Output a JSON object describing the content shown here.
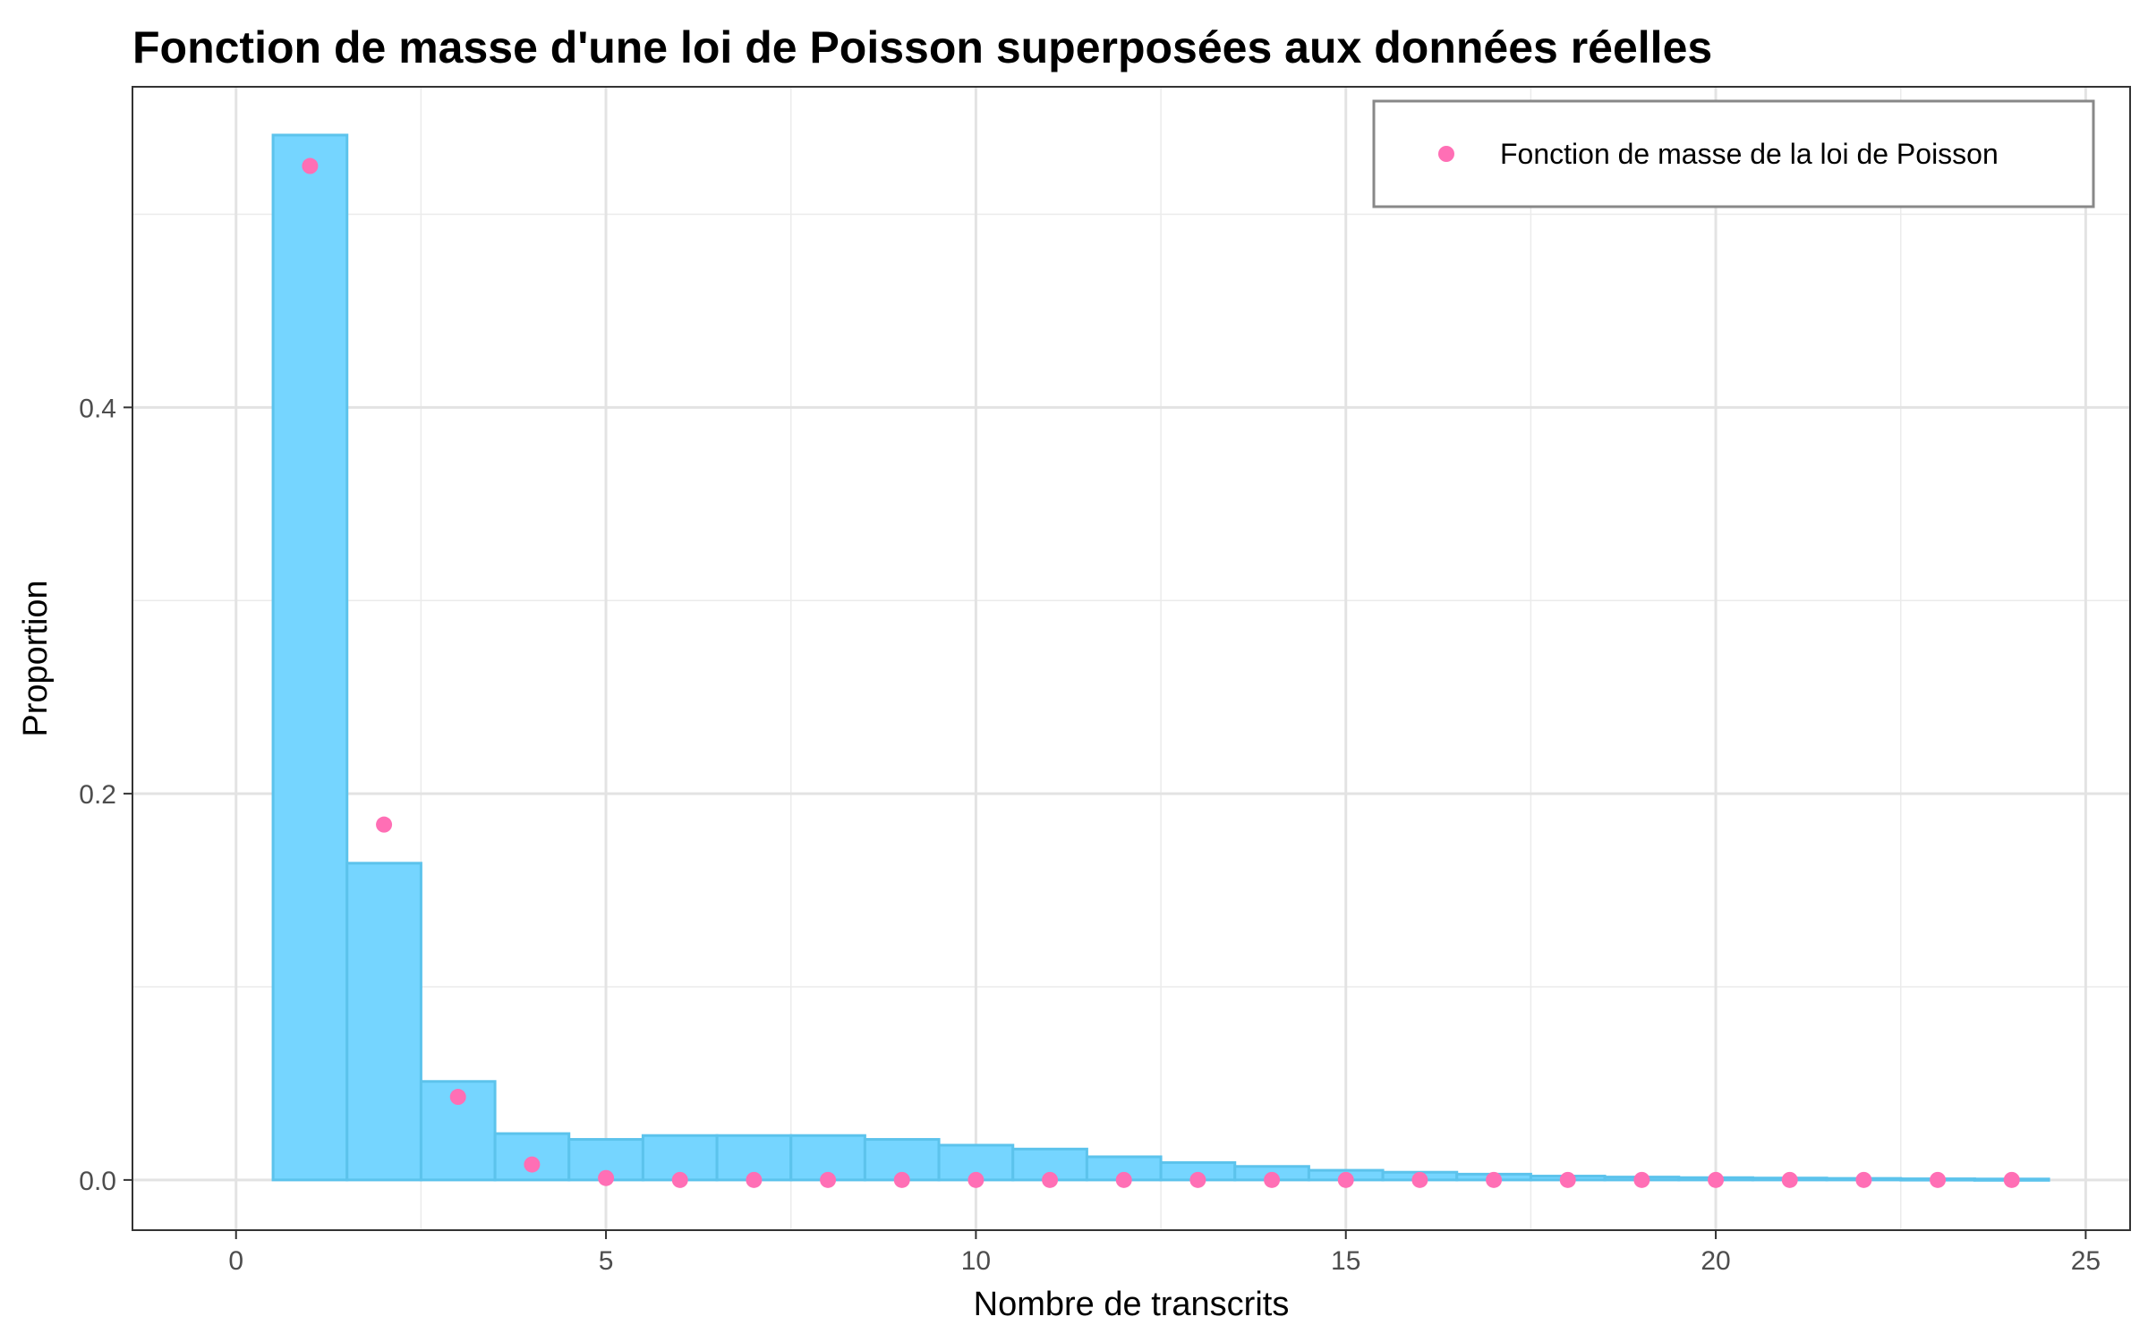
{
  "chart_data": {
    "type": "bar",
    "title": "Fonction de masse d'une loi de Poisson superposées aux données réelles",
    "xlabel": "Nombre de transcrits",
    "ylabel": "Proportion",
    "xlim": [
      -1.4,
      25.6
    ],
    "ylim": [
      -0.026,
      0.566
    ],
    "x_ticks": [
      0,
      5,
      10,
      15,
      20,
      25
    ],
    "x_tick_labels": [
      "0",
      "5",
      "10",
      "15",
      "20",
      "25"
    ],
    "y_ticks": [
      0.0,
      0.2,
      0.4
    ],
    "y_tick_labels": [
      "0.0",
      "0.2",
      "0.4"
    ],
    "grid": true,
    "legend_position": "top-right",
    "histogram": {
      "x": [
        1,
        2,
        3,
        4,
        5,
        6,
        7,
        8,
        9,
        10,
        11,
        12,
        13,
        14,
        15,
        16,
        17,
        18,
        19,
        20,
        21,
        22,
        23,
        24
      ],
      "values": [
        0.541,
        0.164,
        0.051,
        0.024,
        0.021,
        0.023,
        0.023,
        0.023,
        0.021,
        0.018,
        0.016,
        0.012,
        0.009,
        0.007,
        0.005,
        0.004,
        0.003,
        0.002,
        0.0015,
        0.0012,
        0.001,
        0.0008,
        0.0006,
        0.0005
      ],
      "color": "#75D5FF",
      "edge_color": "#5CC3EC"
    },
    "series": [
      {
        "name": "Fonction de masse de la loi de Poisson",
        "type": "scatter",
        "x": [
          1,
          2,
          3,
          4,
          5,
          6,
          7,
          8,
          9,
          10,
          11,
          12,
          13,
          14,
          15,
          16,
          17,
          18,
          19,
          20,
          21,
          22,
          23,
          24
        ],
        "values": [
          0.525,
          0.184,
          0.043,
          0.008,
          0.001,
          0,
          0,
          0,
          0,
          0,
          0,
          0,
          0,
          0,
          0,
          0,
          0,
          0,
          0,
          0,
          0,
          0,
          0,
          0
        ],
        "color": "#FF6FB5"
      }
    ]
  }
}
